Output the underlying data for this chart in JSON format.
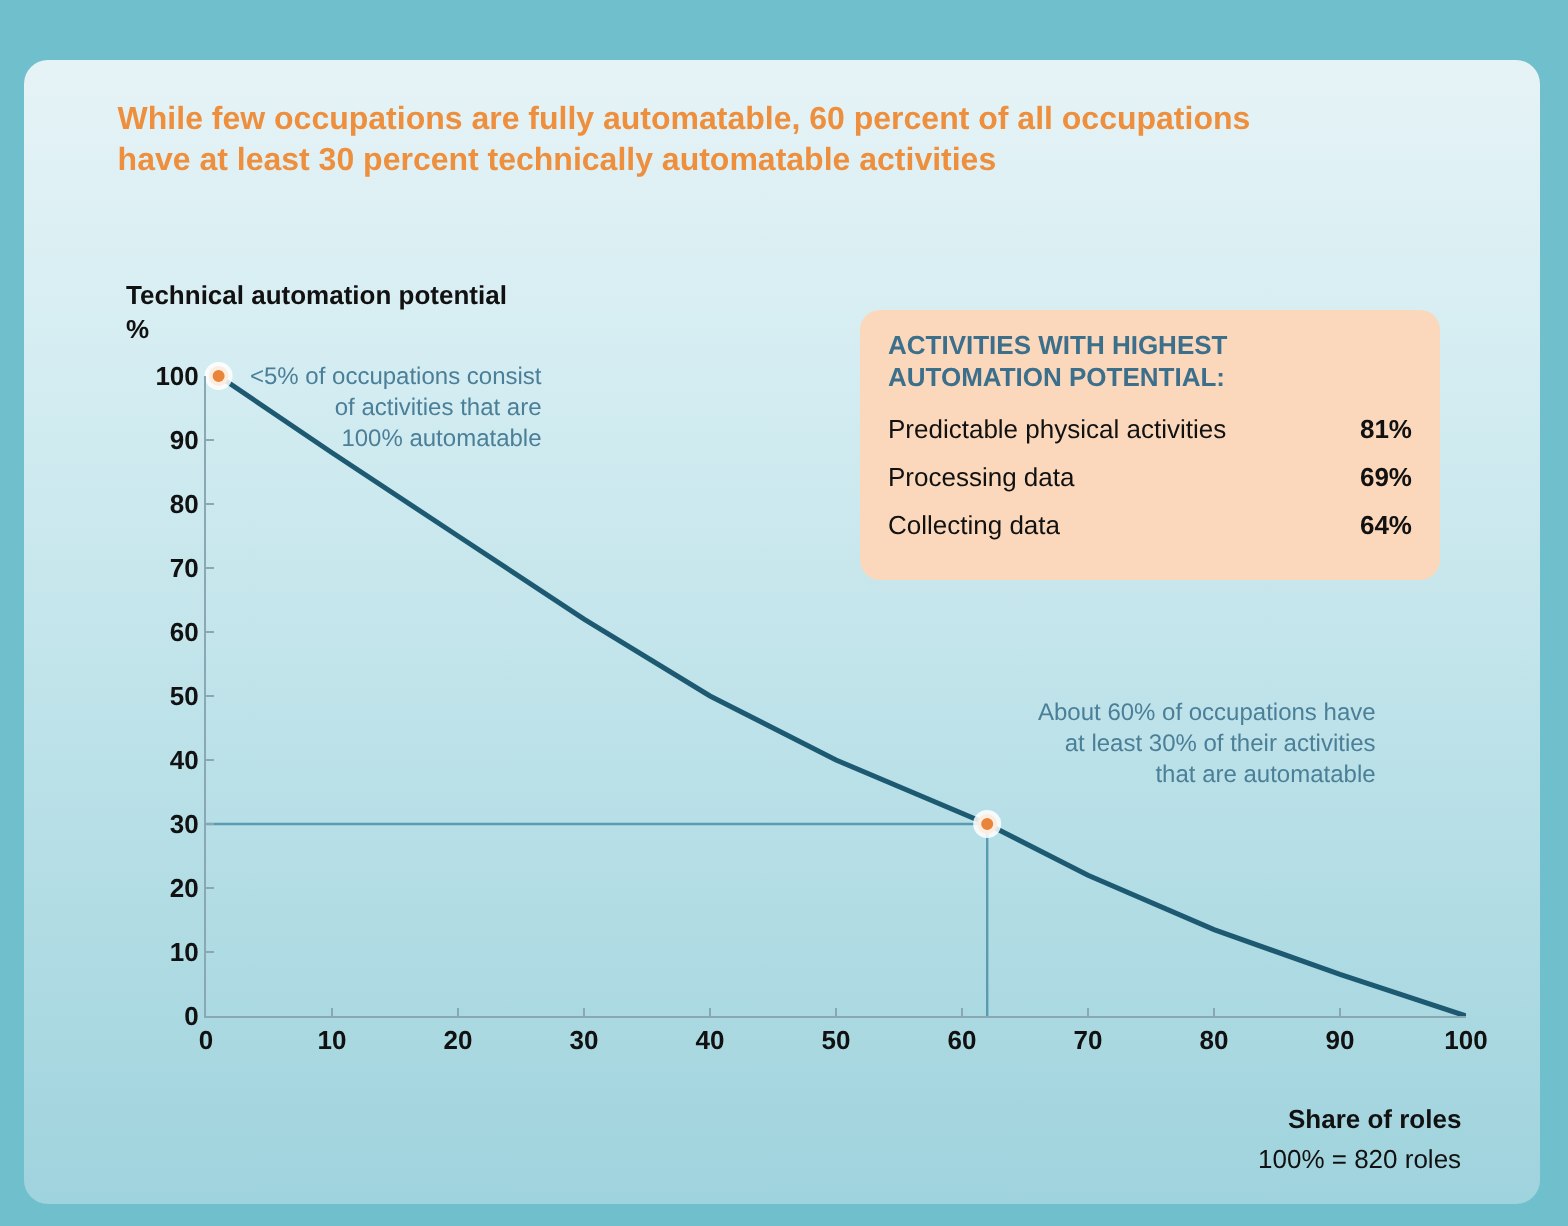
{
  "chart_data": [
    {
      "type": "line",
      "title": "While few occupations are fully automatable, 60 percent of all occupations\nhave at least 30 percent technically automatable activities",
      "ylabel": "Technical automation potential\n%",
      "xlabel": "Share of roles",
      "series": [
        {
          "type": "line",
          "color": "#1d5a72",
          "marker": "none",
          "x": [
            1,
            10,
            20,
            30,
            40,
            50,
            62,
            70,
            80,
            90,
            100
          ],
          "values": [
            100,
            88,
            75,
            62,
            50,
            40,
            30,
            22,
            13.5,
            6.5,
            0
          ]
        },
        {
          "type": "scatter",
          "color": "#e8853a",
          "marker": "circle",
          "x": [
            1,
            62
          ],
          "values": [
            100,
            30
          ]
        }
      ],
      "xlim": [
        0,
        100
      ],
      "xticks": [
        0,
        10,
        20,
        30,
        40,
        50,
        60,
        70,
        80,
        90,
        100
      ],
      "ylim": [
        0,
        100
      ],
      "yticks": [
        0,
        10,
        20,
        30,
        40,
        50,
        60,
        70,
        80,
        90,
        100
      ],
      "grid": false,
      "ref_lines": [
        {
          "axis": "y",
          "value": 30,
          "color": "#5a9bb0"
        },
        {
          "axis": "x",
          "value": 62,
          "color": "#5a9bb0"
        }
      ],
      "annotations": [
        {
          "text": "<5% of occupations consist\nof activities that are\n100% automatable",
          "x": 1,
          "y": 100
        },
        {
          "text": "About 60% of occupations have\nat least 30% of their activities\nthat are automatable",
          "x": 62,
          "y": 30
        },
        "100% = 820 roles"
      ]
    },
    {
      "type": "other",
      "title": "ACTIVITIES WITH HIGHEST\nAUTOMATION POTENTIAL:",
      "categories": [
        "Predictable physical activities",
        "Processing data",
        "Collecting data"
      ],
      "value_labels": [
        "81%",
        "69%",
        "64%"
      ]
    }
  ]
}
